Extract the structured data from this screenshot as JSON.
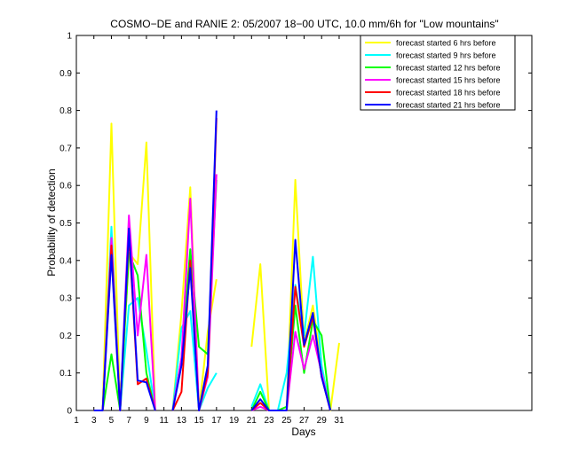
{
  "chart_data": {
    "type": "line",
    "title": "COSMO−DE and RANIE 2: 05/2007 18−00 UTC, 10.0 mm/6h for \"Low mountains\"",
    "xlabel": "Days",
    "ylabel": "Probability of detection",
    "xlim": [
      1,
      53
    ],
    "ylim": [
      0,
      1
    ],
    "xticks": [
      1,
      3,
      5,
      7,
      9,
      11,
      13,
      15,
      17,
      19,
      21,
      23,
      25,
      27,
      29,
      31
    ],
    "xtick_labels": [
      "1",
      "3",
      "5",
      "7",
      "9",
      "11",
      "13",
      "15",
      "17",
      "19",
      "21",
      "23",
      "25",
      "27",
      "29",
      "31"
    ],
    "yticks": [
      0,
      0.1,
      0.2,
      0.3,
      0.4,
      0.5,
      0.6,
      0.7,
      0.8,
      0.9,
      1
    ],
    "ytick_labels": [
      "0",
      "0.1",
      "0.2",
      "0.3",
      "0.4",
      "0.5",
      "0.6",
      "0.7",
      "0.8",
      "0.9",
      "1"
    ],
    "grid": false,
    "legend_position": "top-right",
    "series": [
      {
        "name": "forecast started 6 hrs before",
        "color": "#ffff00",
        "segments": [
          [
            [
              3,
              0
            ],
            [
              4,
              0
            ],
            [
              5,
              0.765
            ],
            [
              6,
              0
            ],
            [
              7,
              0.42
            ],
            [
              8,
              0.39
            ],
            [
              9,
              0.715
            ],
            [
              10,
              0
            ]
          ],
          [
            [
              12,
              0
            ],
            [
              13,
              0.26
            ],
            [
              14,
              0.595
            ],
            [
              15,
              0
            ],
            [
              16,
              0.21
            ],
            [
              17,
              0.35
            ]
          ],
          [
            [
              21,
              0.17
            ],
            [
              22,
              0.39
            ],
            [
              23,
              0
            ],
            [
              24,
              0
            ],
            [
              25,
              0
            ],
            [
              26,
              0.615
            ],
            [
              27,
              0.18
            ],
            [
              28,
              0.28
            ],
            [
              29,
              0.12
            ],
            [
              30,
              0
            ],
            [
              31,
              0.18
            ]
          ]
        ]
      },
      {
        "name": "forecast started 9 hrs before",
        "color": "#00ffff",
        "segments": [
          [
            [
              3,
              0
            ],
            [
              4,
              0
            ],
            [
              5,
              0.49
            ],
            [
              6,
              0
            ],
            [
              7,
              0.28
            ],
            [
              8,
              0.3
            ],
            [
              9,
              0.16
            ],
            [
              10,
              0
            ]
          ],
          [
            [
              12,
              0
            ],
            [
              13,
              0.22
            ],
            [
              14,
              0.265
            ],
            [
              15,
              0
            ],
            [
              16,
              0.06
            ],
            [
              17,
              0.1
            ]
          ],
          [
            [
              21,
              0.01
            ],
            [
              22,
              0.07
            ],
            [
              23,
              0
            ],
            [
              24,
              0
            ],
            [
              25,
              0.1
            ],
            [
              26,
              0.335
            ],
            [
              27,
              0.2
            ],
            [
              28,
              0.41
            ],
            [
              29,
              0.12
            ],
            [
              30,
              0
            ]
          ]
        ]
      },
      {
        "name": "forecast started 12 hrs before",
        "color": "#00ff00",
        "segments": [
          [
            [
              3,
              0
            ],
            [
              4,
              0
            ],
            [
              5,
              0.15
            ],
            [
              6,
              0
            ],
            [
              7,
              0.42
            ],
            [
              8,
              0.36
            ],
            [
              9,
              0.1
            ],
            [
              10,
              0
            ]
          ],
          [
            [
              12,
              0
            ],
            [
              13,
              0.14
            ],
            [
              14,
              0.43
            ],
            [
              15,
              0.17
            ],
            [
              16,
              0.15
            ],
            [
              17,
              0.615
            ]
          ],
          [
            [
              21,
              0
            ],
            [
              22,
              0.05
            ],
            [
              23,
              0
            ],
            [
              24,
              0
            ],
            [
              25,
              0.01
            ],
            [
              26,
              0.28
            ],
            [
              27,
              0.1
            ],
            [
              28,
              0.24
            ],
            [
              29,
              0.2
            ],
            [
              30,
              0
            ]
          ]
        ]
      },
      {
        "name": "forecast started 15 hrs before",
        "color": "#ff00ff",
        "segments": [
          [
            [
              3,
              0
            ],
            [
              4,
              0
            ],
            [
              5,
              0.46
            ],
            [
              6,
              0
            ],
            [
              7,
              0.52
            ],
            [
              8,
              0.2
            ],
            [
              9,
              0.415
            ],
            [
              10,
              0
            ]
          ],
          [
            [
              12,
              0
            ],
            [
              13,
              0.14
            ],
            [
              14,
              0.565
            ],
            [
              15,
              0
            ],
            [
              16,
              0.09
            ],
            [
              17,
              0.63
            ]
          ],
          [
            [
              21,
              0
            ],
            [
              22,
              0.01
            ],
            [
              23,
              0
            ],
            [
              24,
              0
            ],
            [
              25,
              0
            ],
            [
              26,
              0.21
            ],
            [
              27,
              0.11
            ],
            [
              28,
              0.2
            ],
            [
              29,
              0.1
            ],
            [
              30,
              0
            ]
          ]
        ]
      },
      {
        "name": "forecast started 18 hrs before",
        "color": "#ff0000",
        "segments": [
          [
            [
              3,
              0
            ],
            [
              4,
              0
            ],
            [
              5,
              0.44
            ],
            [
              6,
              0
            ],
            [
              7,
              0.47
            ],
            [
              8,
              0.07
            ],
            [
              9,
              0.085
            ],
            [
              10,
              0
            ]
          ],
          [
            [
              12,
              0
            ],
            [
              13,
              0.05
            ],
            [
              14,
              0.4
            ],
            [
              15,
              0
            ],
            [
              16,
              0.1
            ],
            [
              17,
              0.78
            ]
          ],
          [
            [
              21,
              0
            ],
            [
              22,
              0.02
            ],
            [
              23,
              0
            ],
            [
              24,
              0
            ],
            [
              25,
              0
            ],
            [
              26,
              0.33
            ],
            [
              27,
              0.17
            ],
            [
              28,
              0.25
            ],
            [
              29,
              0.09
            ],
            [
              30,
              0
            ]
          ]
        ]
      },
      {
        "name": "forecast started 21 hrs before",
        "color": "#0000ff",
        "segments": [
          [
            [
              3,
              0
            ],
            [
              4,
              0
            ],
            [
              5,
              0.415
            ],
            [
              6,
              0
            ],
            [
              7,
              0.485
            ],
            [
              8,
              0.08
            ],
            [
              9,
              0.075
            ],
            [
              10,
              0
            ]
          ],
          [
            [
              12,
              0
            ],
            [
              13,
              0.12
            ],
            [
              14,
              0.38
            ],
            [
              15,
              0
            ],
            [
              16,
              0.12
            ],
            [
              17,
              0.8
            ]
          ],
          [
            [
              21,
              0
            ],
            [
              22,
              0.03
            ],
            [
              23,
              0
            ],
            [
              24,
              0
            ],
            [
              25,
              0
            ],
            [
              26,
              0.455
            ],
            [
              27,
              0.175
            ],
            [
              28,
              0.26
            ],
            [
              29,
              0.09
            ],
            [
              30,
              0
            ]
          ]
        ]
      }
    ]
  }
}
